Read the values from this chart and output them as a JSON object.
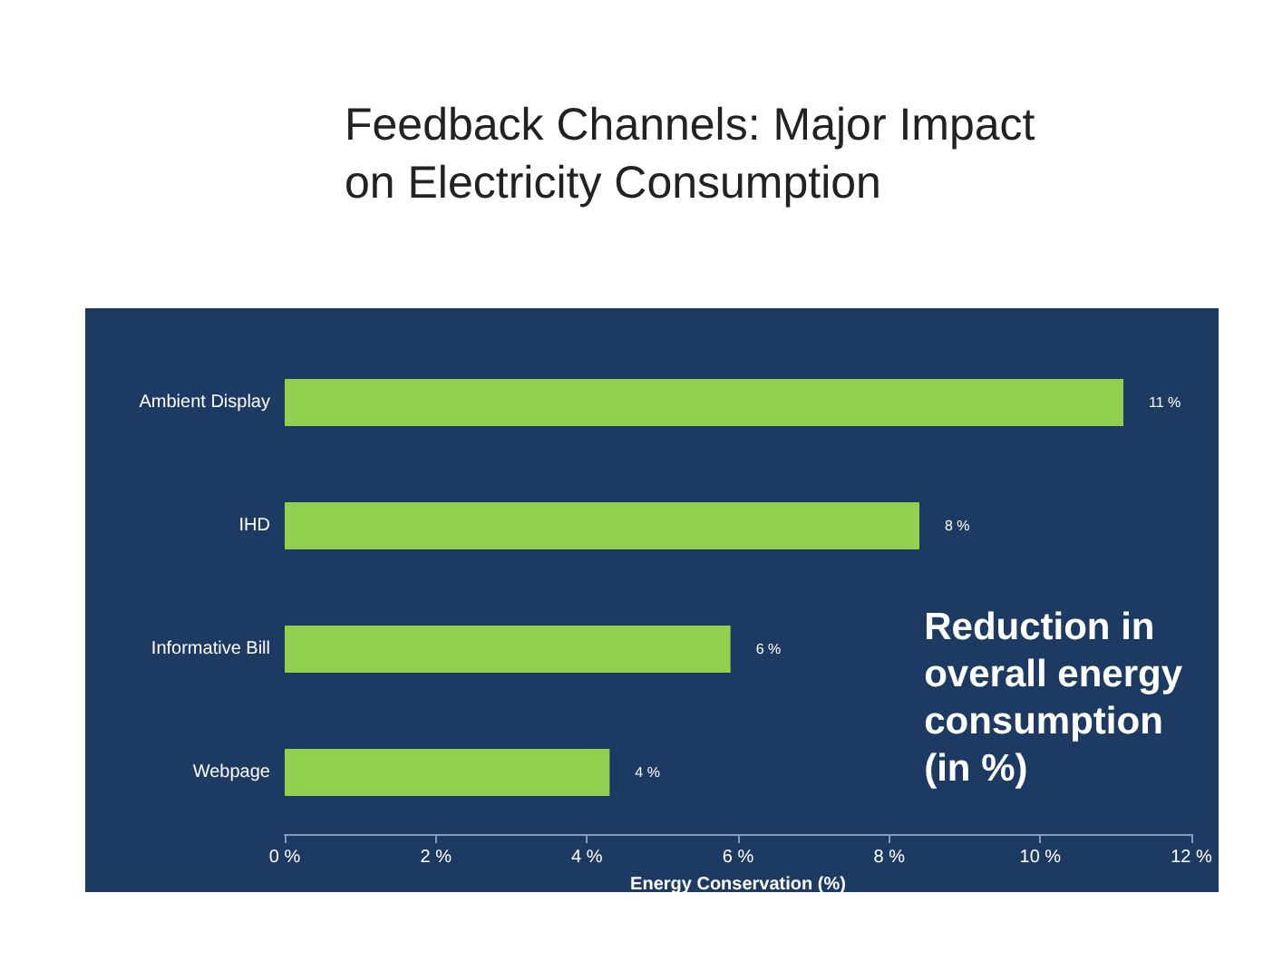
{
  "chart_data": {
    "type": "bar",
    "orientation": "horizontal",
    "title": "Feedback Channels: Major Impact\non Electricity Consumption",
    "categories": [
      "Ambient Display",
      "IHD",
      "Informative Bill",
      "Webpage"
    ],
    "values": [
      11.1,
      8.4,
      5.9,
      4.3
    ],
    "value_labels": [
      "11 %",
      "8 %",
      "6 %",
      "4 %"
    ],
    "color": "#92d050",
    "xlabel": "Energy Conservation (%)",
    "xlim": [
      0,
      12
    ],
    "xticks": [
      {
        "value": 0,
        "label": "0 %"
      },
      {
        "value": 2,
        "label": "2 %"
      },
      {
        "value": 4,
        "label": "4 %"
      },
      {
        "value": 6,
        "label": "6 %"
      },
      {
        "value": 8,
        "label": "8 %"
      },
      {
        "value": 10,
        "label": "10 %"
      },
      {
        "value": 12,
        "label": "12 %"
      }
    ],
    "annotations": [
      "Reduction in\noverall energy\nconsumption\n(in %)"
    ],
    "grid": false
  }
}
